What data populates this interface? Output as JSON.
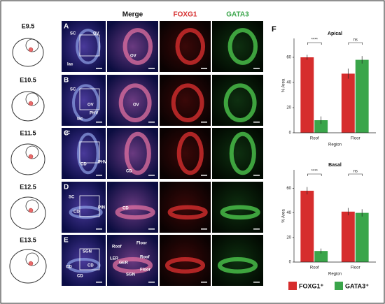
{
  "stages": [
    "E9.5",
    "E10.5",
    "E11.5",
    "E12.5",
    "E13.5"
  ],
  "column_headers": [
    "Merge",
    "FOXG1",
    "GATA3"
  ],
  "rows": [
    {
      "letter": "A",
      "labels": [
        "SC",
        "OV",
        "lac"
      ],
      "merge_labels": [
        "OV"
      ]
    },
    {
      "letter": "B",
      "labels": [
        "SC",
        "OV",
        "PHV",
        "lac"
      ],
      "merge_labels": [
        "OV"
      ]
    },
    {
      "letter": "C",
      "labels": [
        "SC",
        "CD",
        "PHV"
      ],
      "merge_labels": [
        "CD"
      ]
    },
    {
      "letter": "D",
      "labels": [
        "SC",
        "CD",
        "PIN"
      ],
      "merge_labels": [
        "CD"
      ]
    },
    {
      "letter": "E",
      "labels": [
        "SGN",
        "CD",
        "CD",
        "CD"
      ],
      "merge_labels": [
        "Roof",
        "LER",
        "GER",
        "Roof",
        "SGN",
        "Floor",
        "Floor"
      ]
    }
  ],
  "panel_f_letter": "F",
  "legend": [
    {
      "name": "FOXG1⁺",
      "color": "#d62d2d"
    },
    {
      "name": "GATA3⁺",
      "color": "#3aa54a"
    }
  ],
  "chart_data": [
    {
      "type": "bar",
      "title": "Apical",
      "x_label": "Region",
      "y_label": "% Area",
      "categories": [
        "Roof",
        "Floor"
      ],
      "series": [
        {
          "color": "#d62d2d",
          "values": [
            60,
            47
          ],
          "errors": [
            2,
            4
          ]
        },
        {
          "color": "#3aa54a",
          "values": [
            10,
            58
          ],
          "errors": [
            3,
            3
          ]
        }
      ],
      "ylim": [
        0,
        75
      ],
      "yticks": [
        0,
        20,
        40,
        60
      ],
      "annotations": [
        "****",
        "ns"
      ]
    },
    {
      "type": "bar",
      "title": "Basal",
      "x_label": "Region",
      "y_label": "% Area",
      "categories": [
        "Roof",
        "Floor"
      ],
      "series": [
        {
          "color": "#d62d2d",
          "values": [
            58,
            41
          ],
          "errors": [
            3,
            3
          ]
        },
        {
          "color": "#3aa54a",
          "values": [
            9,
            40
          ],
          "errors": [
            2,
            3
          ]
        }
      ],
      "ylim": [
        0,
        75
      ],
      "yticks": [
        0,
        20,
        40,
        60
      ],
      "annotations": [
        "****",
        "ns"
      ]
    }
  ]
}
